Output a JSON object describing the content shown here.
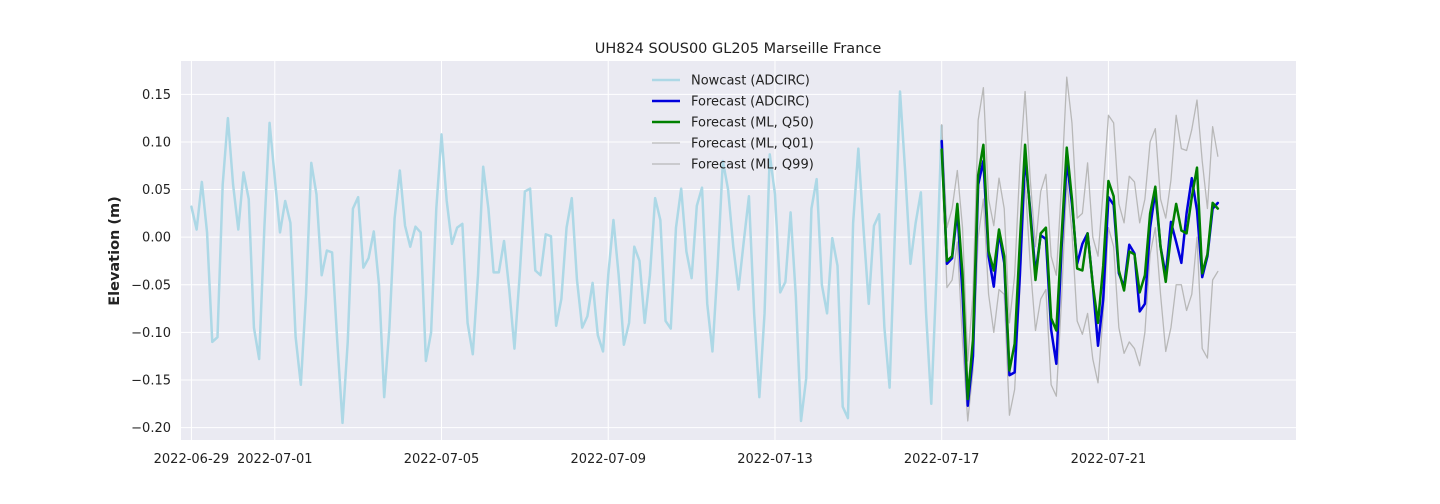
{
  "chart_data": {
    "type": "line",
    "title": "UH824 SOUS00 GL205 Marseille France",
    "xlabel": "",
    "ylabel": "Elevation (m)",
    "x_axis": {
      "type": "date",
      "ticks": [
        "2022-06-29",
        "2022-07-01",
        "2022-07-05",
        "2022-07-09",
        "2022-07-13",
        "2022-07-17",
        "2022-07-21"
      ],
      "range": [
        "2022-06-28 18:00",
        "2022-07-25 12:00"
      ]
    },
    "y_axis": {
      "ticks": [
        -0.2,
        -0.15,
        -0.1,
        -0.05,
        0.0,
        0.05,
        0.1,
        0.15
      ],
      "tick_labels": [
        "−0.20",
        "−0.15",
        "−0.10",
        "−0.05",
        "0.00",
        "0.05",
        "0.10",
        "0.15"
      ],
      "range": [
        -0.213,
        0.185
      ]
    },
    "grid": true,
    "legend_position": "top-center",
    "series": [
      {
        "name": "Nowcast (ADCIRC)",
        "color": "#add8e6",
        "width": 2.5,
        "start": "2022-06-29 00:00",
        "step_hours": 3,
        "values": [
          0.032,
          0.008,
          0.058,
          0.005,
          -0.11,
          -0.105,
          0.055,
          0.125,
          0.055,
          0.008,
          0.068,
          0.04,
          -0.095,
          -0.128,
          0.01,
          0.12,
          0.062,
          0.005,
          0.038,
          0.015,
          -0.105,
          -0.155,
          -0.06,
          0.078,
          0.045,
          -0.04,
          -0.014,
          -0.016,
          -0.11,
          -0.195,
          -0.11,
          0.03,
          0.042,
          -0.032,
          -0.022,
          0.006,
          -0.05,
          -0.168,
          -0.095,
          0.02,
          0.07,
          0.012,
          -0.01,
          0.011,
          0.005,
          -0.13,
          -0.1,
          0.03,
          0.108,
          0.038,
          -0.007,
          0.01,
          0.014,
          -0.09,
          -0.123,
          -0.04,
          0.074,
          0.03,
          -0.037,
          -0.037,
          -0.004,
          -0.055,
          -0.117,
          -0.04,
          0.048,
          0.051,
          -0.035,
          -0.04,
          0.003,
          0.001,
          -0.093,
          -0.065,
          0.01,
          0.041,
          -0.045,
          -0.095,
          -0.083,
          -0.048,
          -0.103,
          -0.12,
          -0.04,
          0.018,
          -0.04,
          -0.113,
          -0.09,
          -0.01,
          -0.025,
          -0.09,
          -0.04,
          0.041,
          0.018,
          -0.088,
          -0.096,
          0.01,
          0.051,
          -0.015,
          -0.043,
          0.033,
          0.052,
          -0.07,
          -0.12,
          -0.03,
          0.08,
          0.05,
          -0.01,
          -0.055,
          -0.005,
          0.043,
          -0.08,
          -0.168,
          -0.08,
          0.087,
          0.045,
          -0.058,
          -0.047,
          0.026,
          -0.062,
          -0.193,
          -0.148,
          0.03,
          0.061,
          -0.05,
          -0.08,
          -0.001,
          -0.03,
          -0.178,
          -0.19,
          0.015,
          0.093,
          0.008,
          -0.07,
          0.012,
          0.024,
          -0.095,
          -0.158,
          0.002,
          0.153,
          0.068,
          -0.028,
          0.015,
          0.047,
          -0.08,
          -0.175,
          -0.04,
          0.117
        ]
      },
      {
        "name": "Forecast (ADCIRC)",
        "color": "#0000dd",
        "width": 2.5,
        "start": "2022-07-17 00:00",
        "step_hours": 3,
        "values": [
          0.101,
          -0.028,
          -0.022,
          0.028,
          -0.06,
          -0.177,
          -0.125,
          0.055,
          0.08,
          -0.02,
          -0.052,
          0.005,
          -0.027,
          -0.145,
          -0.142,
          -0.04,
          0.085,
          0.028,
          -0.038,
          0.002,
          -0.002,
          -0.097,
          -0.133,
          -0.012,
          0.08,
          0.035,
          -0.028,
          -0.007,
          0.004,
          -0.05,
          -0.114,
          -0.065,
          0.042,
          0.034,
          -0.038,
          -0.052,
          -0.008,
          -0.017,
          -0.078,
          -0.07,
          0.01,
          0.048,
          -0.01,
          -0.04,
          0.016,
          -0.005,
          -0.027,
          0.025,
          0.062,
          0.028,
          -0.042,
          -0.02,
          0.03,
          0.036
        ]
      },
      {
        "name": "Forecast (ML, Q50)",
        "color": "#008000",
        "width": 2.5,
        "start": "2022-07-17 00:00",
        "step_hours": 3,
        "values": [
          0.092,
          -0.025,
          -0.02,
          0.035,
          -0.04,
          -0.17,
          -0.108,
          0.065,
          0.097,
          -0.015,
          -0.035,
          0.008,
          -0.02,
          -0.14,
          -0.112,
          -0.005,
          0.097,
          0.023,
          -0.045,
          0.004,
          0.01,
          -0.085,
          -0.098,
          0.0,
          0.094,
          0.04,
          -0.033,
          -0.035,
          0.004,
          -0.05,
          -0.09,
          -0.03,
          0.059,
          0.043,
          -0.035,
          -0.056,
          -0.015,
          -0.018,
          -0.058,
          -0.04,
          0.025,
          0.053,
          -0.01,
          -0.047,
          0.002,
          0.035,
          0.007,
          0.004,
          0.042,
          0.073,
          -0.038,
          -0.018,
          0.036,
          0.03
        ]
      },
      {
        "name": "Forecast (ML, Q01)",
        "color": "#b8b8b8",
        "width": 1.3,
        "start": "2022-07-17 00:00",
        "step_hours": 3,
        "values": [
          0.095,
          -0.053,
          -0.045,
          -0.005,
          -0.11,
          -0.193,
          -0.14,
          0.0,
          0.04,
          -0.06,
          -0.1,
          -0.055,
          -0.06,
          -0.187,
          -0.16,
          -0.055,
          0.06,
          -0.03,
          -0.098,
          -0.065,
          -0.055,
          -0.155,
          -0.167,
          -0.065,
          0.06,
          0.005,
          -0.088,
          -0.102,
          -0.08,
          -0.128,
          -0.153,
          -0.08,
          0.01,
          -0.01,
          -0.095,
          -0.122,
          -0.11,
          -0.117,
          -0.135,
          -0.1,
          -0.018,
          0.01,
          -0.06,
          -0.12,
          -0.095,
          -0.05,
          -0.05,
          -0.077,
          -0.06,
          0.0,
          -0.117,
          -0.127,
          -0.045,
          -0.036
        ]
      },
      {
        "name": "Forecast (ML, Q99)",
        "color": "#b8b8b8",
        "width": 1.3,
        "start": "2022-07-17 00:00",
        "step_hours": 3,
        "values": [
          0.118,
          0.01,
          0.03,
          0.07,
          0.01,
          -0.13,
          -0.06,
          0.123,
          0.157,
          0.04,
          0.012,
          0.062,
          0.03,
          -0.09,
          -0.04,
          0.075,
          0.153,
          0.06,
          -0.01,
          0.048,
          0.066,
          -0.02,
          -0.04,
          0.055,
          0.168,
          0.12,
          0.02,
          0.025,
          0.078,
          0.0,
          -0.02,
          0.05,
          0.128,
          0.12,
          0.035,
          0.015,
          0.064,
          0.058,
          0.015,
          0.04,
          0.1,
          0.114,
          0.04,
          0.02,
          0.06,
          0.128,
          0.093,
          0.091,
          0.113,
          0.144,
          0.08,
          0.03,
          0.116,
          0.085
        ]
      }
    ]
  }
}
